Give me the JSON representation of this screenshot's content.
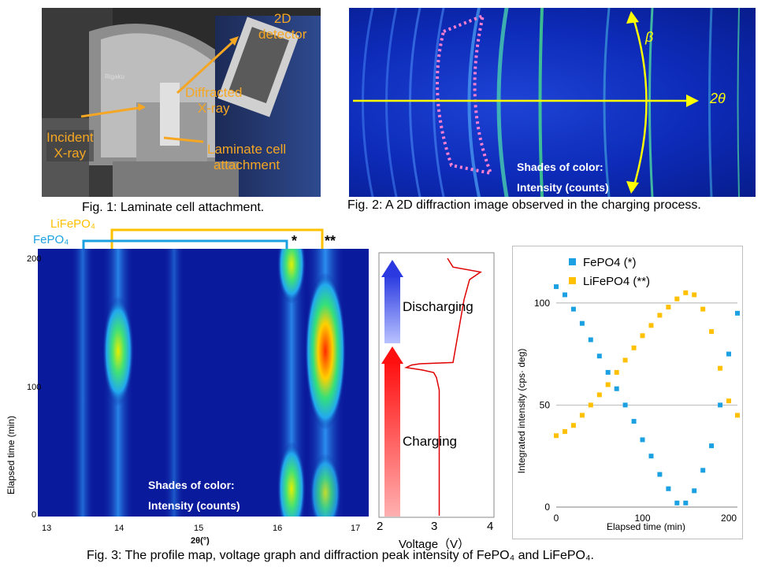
{
  "fig1": {
    "caption": "Fig. 1: Laminate cell attachment.",
    "labels": {
      "detector": "2D\ndetector",
      "diffracted": "Diffracted\nX-ray",
      "incident": "Incident\nX-ray",
      "attachment": "Laminate cell\nattachment"
    }
  },
  "fig2": {
    "caption": "Fig. 2: A 2D diffraction image observed in the charging process.",
    "beta_label": "β",
    "twotheta_label": "2θ",
    "shades_line1": "Shades of color:",
    "shades_line2": "Intensity (counts)"
  },
  "fig3": {
    "caption": "Fig. 3: The profile map, voltage graph and diffraction peak intensity of FePO₄ and LiFePO₄.",
    "bracket_lifepo4": "LiFePO₄",
    "bracket_fepo4": "FePO₄",
    "star1": "*",
    "star2": "**",
    "map": {
      "ylabel": "Elapsed time (min)",
      "xlabel": "2θ(°)",
      "x_ticks": [
        "13",
        "14",
        "15",
        "16",
        "17"
      ],
      "y_ticks": [
        "0",
        "100",
        "200"
      ],
      "shades_line1": "Shades of color:",
      "shades_line2": "Intensity (counts)"
    },
    "voltage": {
      "xlabel": "Voltage（V）",
      "x_ticks": [
        "2",
        "3",
        "4"
      ],
      "discharging": "Discharging",
      "charging": "Charging"
    }
  },
  "chart_data": [
    {
      "type": "heatmap",
      "xlabel": "2θ(°)",
      "ylabel": "Elapsed time (min)",
      "xlim": [
        12.95,
        17.1
      ],
      "ylim": [
        0,
        205
      ],
      "peaks": [
        {
          "two_theta": 13.55,
          "intensity": "low"
        },
        {
          "two_theta": 14.0,
          "intensity": "medium, max near 130 min"
        },
        {
          "two_theta": 14.7,
          "intensity": "low"
        },
        {
          "two_theta": 16.2,
          "intensity": "high at 0 and 200 min, low near 130 min"
        },
        {
          "two_theta": 16.6,
          "intensity": "high, max near 130 min"
        }
      ]
    },
    {
      "type": "line",
      "xlabel": "Voltage（V）",
      "xlim": [
        2,
        4
      ],
      "ylim": [
        0,
        205
      ],
      "x": [
        3.05,
        3.05,
        3.05,
        3.05,
        3.0,
        2.95,
        2.75,
        2.45,
        2.55,
        2.7,
        3.3,
        3.5,
        3.6,
        3.8,
        3.3,
        3.2
      ],
      "y": [
        0,
        50,
        90,
        100,
        110,
        114,
        116,
        118,
        120,
        121,
        122,
        172,
        188,
        194,
        198,
        205
      ]
    },
    {
      "type": "scatter",
      "xlabel": "Elapsed time  (min)",
      "ylabel": "Integrated intensity  (cps· deg)",
      "xlim": [
        0,
        210
      ],
      "ylim": [
        0,
        125
      ],
      "yticks": [
        0,
        50,
        100
      ],
      "xticks": [
        0,
        100,
        200
      ],
      "grid": true,
      "legend_position": "top-left",
      "series": [
        {
          "name": "FePO4 (*)",
          "color": "#1ba1e2",
          "x": [
            0,
            10,
            20,
            30,
            40,
            50,
            60,
            70,
            80,
            90,
            100,
            110,
            120,
            130,
            140,
            150,
            160,
            170,
            180,
            190,
            200,
            210
          ],
          "y": [
            108,
            104,
            97,
            90,
            82,
            74,
            66,
            58,
            50,
            42,
            33,
            25,
            16,
            9,
            2,
            2,
            8,
            18,
            30,
            50,
            75,
            95
          ]
        },
        {
          "name": "LiFePO4 (**)",
          "color": "#ffc000",
          "x": [
            0,
            10,
            20,
            30,
            40,
            50,
            60,
            70,
            80,
            90,
            100,
            110,
            120,
            130,
            140,
            150,
            160,
            170,
            180,
            190,
            200,
            210
          ],
          "y": [
            35,
            37,
            40,
            45,
            50,
            55,
            60,
            66,
            72,
            78,
            84,
            89,
            94,
            98,
            102,
            105,
            104,
            97,
            86,
            68,
            52,
            45
          ]
        }
      ]
    }
  ]
}
